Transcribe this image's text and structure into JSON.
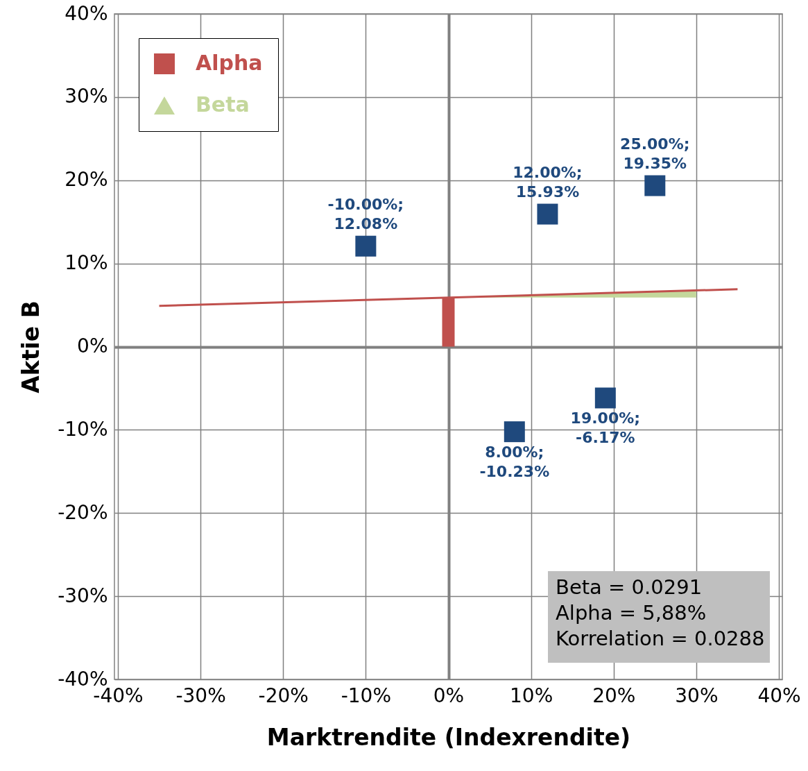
{
  "chart_data": {
    "type": "scatter",
    "xlabel": "Marktrendite (Indexrendite)",
    "ylabel": "Aktie B",
    "xlim": [
      -40,
      40
    ],
    "ylim": [
      -40,
      40
    ],
    "xticks": [
      {
        "value": -40,
        "label": "-40%"
      },
      {
        "value": -30,
        "label": "-30%"
      },
      {
        "value": -20,
        "label": "-20%"
      },
      {
        "value": -10,
        "label": "-10%"
      },
      {
        "value": 0,
        "label": "0%"
      },
      {
        "value": 10,
        "label": "10%"
      },
      {
        "value": 20,
        "label": "20%"
      },
      {
        "value": 30,
        "label": "30%"
      },
      {
        "value": 40,
        "label": "40%"
      }
    ],
    "yticks": [
      {
        "value": -40,
        "label": "-40%"
      },
      {
        "value": -30,
        "label": "-30%"
      },
      {
        "value": -20,
        "label": "-20%"
      },
      {
        "value": -10,
        "label": "-10%"
      },
      {
        "value": 0,
        "label": "0%"
      },
      {
        "value": 10,
        "label": "10%"
      },
      {
        "value": 20,
        "label": "20%"
      },
      {
        "value": 30,
        "label": "30%"
      },
      {
        "value": 40,
        "label": "40%"
      }
    ],
    "grid": true,
    "legend": "top left",
    "series": [
      {
        "name": "Alpha",
        "type": "bar",
        "color": "#c0504d",
        "x": [
          0
        ],
        "values": [
          5.9
        ]
      },
      {
        "name": "Beta",
        "type": "area",
        "color": "#c4d79b",
        "x": [
          0,
          30
        ],
        "values": [
          5.9,
          6.8
        ]
      },
      {
        "type": "line",
        "color": "#c0504d",
        "x": [
          -35,
          35
        ],
        "values": [
          4.9,
          6.9
        ]
      },
      {
        "color": "#1f497d",
        "marker": "square",
        "x": [
          -10,
          12,
          25,
          8,
          19
        ],
        "values": [
          12.08,
          15.93,
          19.35,
          -10.23,
          -6.17
        ],
        "value_labels": [
          "-10.00%;\n12.08%",
          "12.00%;\n15.93%",
          "25.00%;\n19.35%",
          "8.00%;\n-10.23%",
          "19.00%;\n-6.17%"
        ]
      }
    ],
    "annotations": [
      "Beta = 0.0291",
      "Alpha = 5,88%",
      "Korrelation = 0.0288"
    ]
  }
}
